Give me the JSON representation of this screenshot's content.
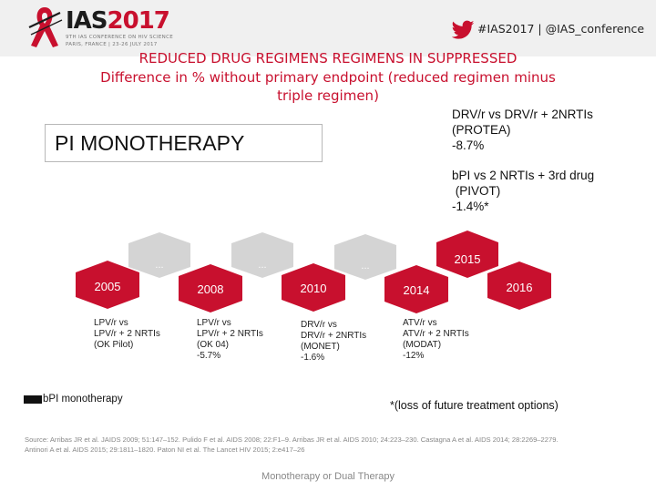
{
  "header": {
    "logo_ias": "IAS",
    "logo_year": "2017",
    "logo_sub1": "9TH IAS CONFERENCE ON HIV SCIENCE",
    "logo_sub2": "PARIS, FRANCE | 23-26 JULY 2017",
    "hashtag": "#IAS2017 | @IAS_conference",
    "brand_color": "#c8102e",
    "icon": "twitter-bird-icon"
  },
  "title": {
    "line1": "REDUCED DRUG REGIMENS REGIMENS IN SUPPRESSED",
    "line2": "Difference in % without primary endpoint (reduced regimen minus",
    "line3": "triple regimen)"
  },
  "pi_box": {
    "label": "PI MONOTHERAPY"
  },
  "notes": {
    "drv": [
      "DRV/r vs DRV/r + 2NRTIs",
      "(PROTEA)",
      "-8.7%"
    ],
    "bpi": [
      "bPI vs 2 NRTIs + 3rd drug",
      " (PIVOT)",
      "-1.4%*"
    ]
  },
  "timeline": {
    "hexes": [
      {
        "label": "2005",
        "color": "#c8102e"
      },
      {
        "label": "...",
        "color": "#d4d4d4"
      },
      {
        "label": "2008",
        "color": "#c8102e"
      },
      {
        "label": "...",
        "color": "#d4d4d4"
      },
      {
        "label": "2010",
        "color": "#c8102e"
      },
      {
        "label": "...",
        "color": "#d4d4d4"
      },
      {
        "label": "2014",
        "color": "#c8102e"
      },
      {
        "label": "2015",
        "color": "#c8102e"
      },
      {
        "label": "2016",
        "color": "#c8102e"
      }
    ],
    "captions": {
      "c2005": [
        "LPV/r  vs",
        "LPV/r + 2 NRTIs",
        "(OK Pilot)"
      ],
      "c2008": [
        "LPV/r vs",
        "LPV/r + 2 NRTIs",
        "(OK 04)",
        "-5.7%"
      ],
      "c2010": [
        "DRV/r  vs",
        "DRV/r + 2NRTIs",
        "(MONET)",
        "-1.6%"
      ],
      "c2014": [
        "ATV/r  vs",
        "ATV/r + 2 NRTIs",
        "(MODAT)",
        "-12%"
      ]
    }
  },
  "legend": {
    "label": "bPI monotherapy"
  },
  "footnote": "*(loss of future treatment options)",
  "sources": {
    "line1": "Source: Arribas JR et al. JAIDS 2009; 51:147–152. Pulido F et al. AIDS 2008; 22:F1–9. Arribas JR et al. AIDS 2010; 24:223–230. Castagna A et al. AIDS 2014; 28:2269–2279.",
    "line2": "Antinori A et al. AIDS 2015; 29:1811–1820. Paton NI et al. The Lancet HIV 2015; 2:e417–26"
  },
  "subject": "Monotherapy or Dual Therapy"
}
